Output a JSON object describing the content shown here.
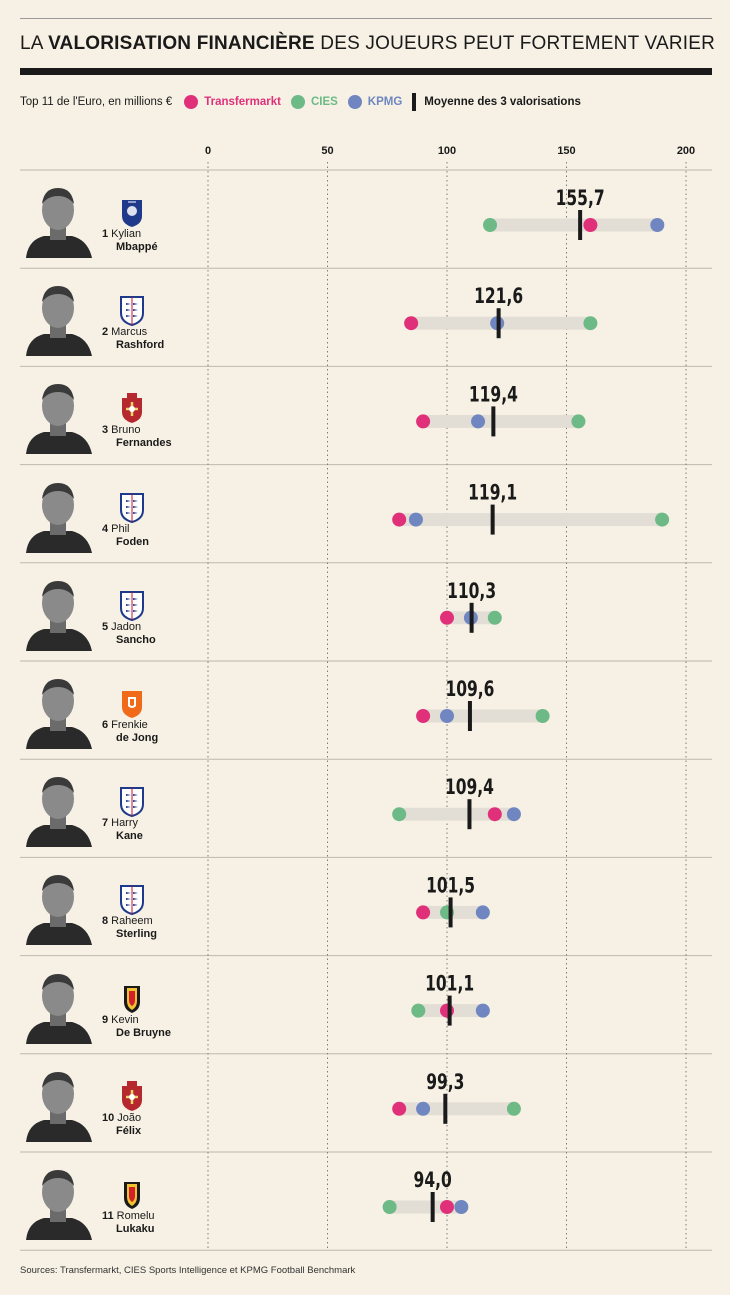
{
  "header": {
    "title_prefix": "LA ",
    "title_bold": "VALORISATION FINANCIÈRE",
    "title_suffix": " DES JOUEURS PEUT FORTEMENT VARIER"
  },
  "legend": {
    "subtitle": "Top 11 de l'Euro, en millions €",
    "transfermarkt": "Transfermarkt",
    "cies": "CIES",
    "kpmg": "KPMG",
    "average": "Moyenne des 3 valorisations"
  },
  "colors": {
    "transfermarkt": "#e0307a",
    "cies": "#6dba86",
    "kpmg": "#6f86c0",
    "average": "#1a1a1a",
    "range_bar": "#e2ded6",
    "background": "#f6f1e4"
  },
  "chart_data": {
    "type": "dot-range",
    "x_ticks": [
      "0",
      "50",
      "100",
      "150",
      "200"
    ],
    "x_tick_values": [
      0,
      50,
      100,
      150,
      200
    ],
    "xlim": [
      0,
      200
    ],
    "grid": "vertical dotted",
    "series": [
      {
        "name": "Transfermarkt",
        "values": [
          160,
          85,
          90,
          80,
          100,
          90,
          120,
          90,
          100,
          80,
          100
        ]
      },
      {
        "name": "CIES",
        "values": [
          118,
          160,
          155,
          190,
          120,
          140,
          80,
          100,
          88,
          128,
          76
        ]
      },
      {
        "name": "KPMG",
        "values": [
          188,
          121,
          113,
          87,
          110,
          100,
          128,
          115,
          115,
          90,
          106
        ]
      },
      {
        "name": "Moyenne des 3 valorisations",
        "values": [
          155.7,
          121.6,
          119.4,
          119.1,
          110.3,
          109.6,
          109.4,
          101.5,
          101.1,
          99.3,
          94.0
        ]
      }
    ],
    "avg_labels": [
      "155,7",
      "121,6",
      "119,4",
      "119,1",
      "110,3",
      "109,6",
      "109,4",
      "101,5",
      "101,1",
      "99,3",
      "94,0"
    ]
  },
  "players": [
    {
      "rank": "1",
      "first": "Kylian",
      "last": "Mbappé",
      "flag": "france"
    },
    {
      "rank": "2",
      "first": "Marcus",
      "last": "Rashford",
      "flag": "england"
    },
    {
      "rank": "3",
      "first": "Bruno",
      "last": "Fernandes",
      "flag": "portugal"
    },
    {
      "rank": "4",
      "first": "Phil",
      "last": "Foden",
      "flag": "england"
    },
    {
      "rank": "5",
      "first": "Jadon",
      "last": "Sancho",
      "flag": "england"
    },
    {
      "rank": "6",
      "first": "Frenkie",
      "last": "de Jong",
      "flag": "netherlands"
    },
    {
      "rank": "7",
      "first": "Harry",
      "last": "Kane",
      "flag": "england"
    },
    {
      "rank": "8",
      "first": "Raheem",
      "last": "Sterling",
      "flag": "england"
    },
    {
      "rank": "9",
      "first": "Kevin",
      "last": "De Bruyne",
      "flag": "belgium"
    },
    {
      "rank": "10",
      "first": "João",
      "last": "Félix",
      "flag": "portugal"
    },
    {
      "rank": "11",
      "first": "Romelu",
      "last": "Lukaku",
      "flag": "belgium"
    }
  ],
  "footer": {
    "sources": "Sources: Transfermarkt, CIES Sports Intelligence et KPMG Football Benchmark"
  }
}
